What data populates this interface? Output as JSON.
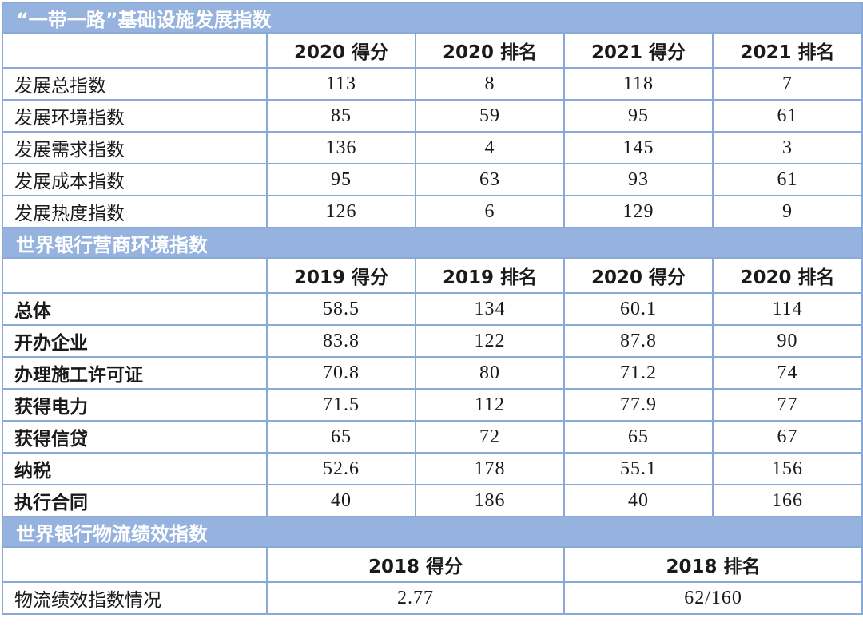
{
  "section1": {
    "title": "“一带一路”基础设施发展指数",
    "headers": [
      "",
      "2020 得分",
      "2020 排名",
      "2021 得分",
      "2021 排名"
    ],
    "rows": [
      [
        "发展总指数",
        "113",
        "8",
        "118",
        "7"
      ],
      [
        "发展环境指数",
        "85",
        "59",
        "95",
        "61"
      ],
      [
        "发展需求指数",
        "136",
        "4",
        "145",
        "3"
      ],
      [
        "发展成本指数",
        "95",
        "63",
        "93",
        "61"
      ],
      [
        "发展热度指数",
        "126",
        "6",
        "129",
        "9"
      ]
    ]
  },
  "section2": {
    "title": "世界银行营商环境指数",
    "headers": [
      "",
      "2019 得分",
      "2019 排名",
      "2020 得分",
      "2020 排名"
    ],
    "rows": [
      [
        "总体",
        "58.5",
        "134",
        "60.1",
        "114"
      ],
      [
        "开办企业",
        "83.8",
        "122",
        "87.8",
        "90"
      ],
      [
        "办理施工许可证",
        "70.8",
        "80",
        "71.2",
        "74"
      ],
      [
        "获得电力",
        "71.5",
        "112",
        "77.9",
        "77"
      ],
      [
        "获得信贷",
        "65",
        "72",
        "65",
        "67"
      ],
      [
        "纳税",
        "52.6",
        "178",
        "55.1",
        "156"
      ],
      [
        "执行合同",
        "40",
        "186",
        "40",
        "166"
      ]
    ]
  },
  "section3": {
    "title": "世界银行物流绩效指数",
    "headers": [
      "",
      "2018 得分",
      "2018 排名"
    ],
    "rows": [
      [
        "物流绩效指数情况",
        "2.77",
        "62/160"
      ]
    ]
  }
}
